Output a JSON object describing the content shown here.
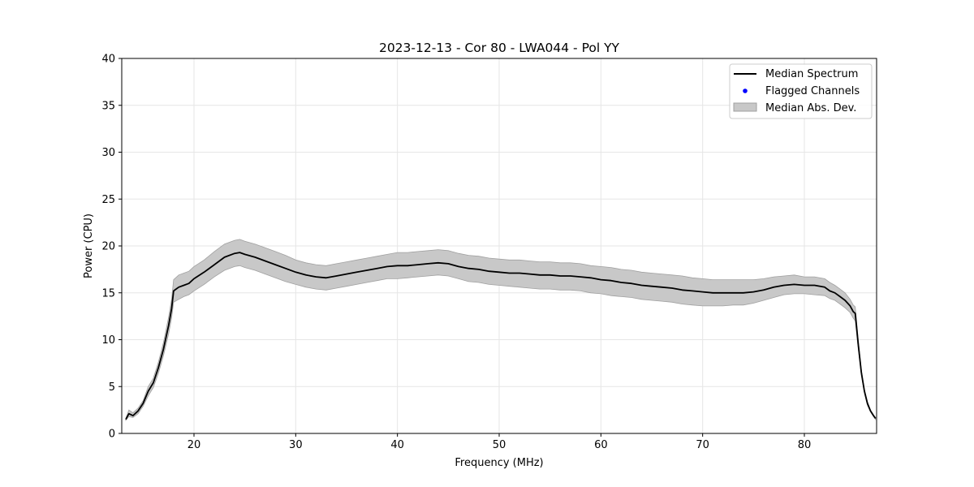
{
  "chart_data": {
    "type": "line",
    "title": "2023-12-13 - Cor 80 - LWA044 - Pol YY",
    "xlabel": "Frequency (MHz)",
    "ylabel": "Power (CPU)",
    "xlim": [
      12.9,
      87.1
    ],
    "ylim": [
      0,
      40
    ],
    "xticks": [
      20,
      30,
      40,
      50,
      60,
      70,
      80
    ],
    "yticks": [
      0,
      5,
      10,
      15,
      20,
      25,
      30,
      35,
      40
    ],
    "grid": true,
    "legend_position": "top-right",
    "legend": [
      "Median Spectrum",
      "Flagged Channels",
      "Median Abs. Dev."
    ],
    "colors": {
      "median": "#000000",
      "flagged": "#0000ff",
      "band_fill": "#c8c8c8",
      "band_edge": "#a0a0a0",
      "grid": "#e6e6e6"
    },
    "series": [
      {
        "name": "Median Spectrum",
        "x": [
          13.3,
          13.6,
          14.0,
          14.5,
          15.0,
          15.5,
          16.0,
          16.5,
          17.0,
          17.5,
          17.8,
          18.0,
          18.5,
          19.0,
          19.5,
          20.0,
          21.0,
          22.0,
          23.0,
          24.0,
          24.5,
          25.0,
          26.0,
          27.0,
          28.0,
          29.0,
          30.0,
          31.0,
          32.0,
          33.0,
          34.0,
          35.0,
          36.0,
          37.0,
          38.0,
          39.0,
          40.0,
          41.0,
          42.0,
          43.0,
          44.0,
          45.0,
          46.0,
          47.0,
          48.0,
          49.0,
          50.0,
          51.0,
          52.0,
          53.0,
          54.0,
          55.0,
          56.0,
          57.0,
          58.0,
          59.0,
          60.0,
          61.0,
          62.0,
          63.0,
          64.0,
          65.0,
          66.0,
          67.0,
          68.0,
          69.0,
          70.0,
          71.0,
          72.0,
          73.0,
          74.0,
          75.0,
          76.0,
          77.0,
          78.0,
          79.0,
          80.0,
          81.0,
          82.0,
          82.5,
          83.0,
          83.5,
          84.0,
          84.5,
          84.8,
          85.0,
          85.3,
          85.6,
          85.9,
          86.2,
          86.5,
          86.8,
          87.0
        ],
        "values": [
          1.5,
          2.1,
          1.9,
          2.4,
          3.2,
          4.5,
          5.4,
          7.0,
          9.0,
          11.5,
          13.3,
          15.2,
          15.6,
          15.8,
          16.0,
          16.5,
          17.2,
          18.0,
          18.8,
          19.2,
          19.3,
          19.1,
          18.8,
          18.4,
          18.0,
          17.6,
          17.2,
          16.9,
          16.7,
          16.6,
          16.8,
          17.0,
          17.2,
          17.4,
          17.6,
          17.8,
          17.9,
          17.9,
          18.0,
          18.1,
          18.2,
          18.1,
          17.8,
          17.6,
          17.5,
          17.3,
          17.2,
          17.1,
          17.1,
          17.0,
          16.9,
          16.9,
          16.8,
          16.8,
          16.7,
          16.6,
          16.4,
          16.3,
          16.1,
          16.0,
          15.8,
          15.7,
          15.6,
          15.5,
          15.3,
          15.2,
          15.1,
          15.0,
          15.0,
          15.0,
          15.0,
          15.1,
          15.3,
          15.6,
          15.8,
          15.9,
          15.8,
          15.8,
          15.6,
          15.2,
          15.0,
          14.6,
          14.2,
          13.6,
          13.0,
          12.8,
          9.5,
          6.5,
          4.5,
          3.2,
          2.4,
          1.9,
          1.6
        ]
      },
      {
        "name": "Median Abs. Dev.",
        "x": [
          13.3,
          13.6,
          14.0,
          14.5,
          15.0,
          15.5,
          16.0,
          16.5,
          17.0,
          17.5,
          17.8,
          18.0,
          18.5,
          19.0,
          19.5,
          20.0,
          21.0,
          22.0,
          23.0,
          24.0,
          24.5,
          25.0,
          26.0,
          27.0,
          28.0,
          29.0,
          30.0,
          31.0,
          32.0,
          33.0,
          34.0,
          35.0,
          36.0,
          37.0,
          38.0,
          39.0,
          40.0,
          41.0,
          42.0,
          43.0,
          44.0,
          45.0,
          46.0,
          47.0,
          48.0,
          49.0,
          50.0,
          51.0,
          52.0,
          53.0,
          54.0,
          55.0,
          56.0,
          57.0,
          58.0,
          59.0,
          60.0,
          61.0,
          62.0,
          63.0,
          64.0,
          65.0,
          66.0,
          67.0,
          68.0,
          69.0,
          70.0,
          71.0,
          72.0,
          73.0,
          74.0,
          75.0,
          76.0,
          77.0,
          78.0,
          79.0,
          80.0,
          81.0,
          82.0,
          82.5,
          83.0,
          83.5,
          84.0,
          84.5,
          84.8,
          85.0,
          85.3,
          85.6,
          85.9,
          86.2,
          86.5,
          86.8,
          87.0
        ],
        "lower": [
          1.4,
          1.8,
          1.7,
          2.1,
          2.9,
          4.0,
          4.9,
          6.4,
          8.3,
          10.6,
          12.3,
          14.0,
          14.3,
          14.6,
          14.8,
          15.2,
          15.9,
          16.7,
          17.4,
          17.8,
          17.9,
          17.7,
          17.4,
          17.0,
          16.6,
          16.2,
          15.9,
          15.6,
          15.4,
          15.3,
          15.5,
          15.7,
          15.9,
          16.1,
          16.3,
          16.5,
          16.5,
          16.6,
          16.7,
          16.8,
          16.9,
          16.8,
          16.5,
          16.2,
          16.1,
          15.9,
          15.8,
          15.7,
          15.6,
          15.5,
          15.4,
          15.4,
          15.3,
          15.3,
          15.2,
          15.0,
          14.9,
          14.7,
          14.6,
          14.5,
          14.3,
          14.2,
          14.1,
          14.0,
          13.8,
          13.7,
          13.6,
          13.6,
          13.6,
          13.7,
          13.7,
          13.9,
          14.2,
          14.5,
          14.8,
          14.9,
          14.9,
          14.8,
          14.7,
          14.4,
          14.2,
          13.8,
          13.4,
          12.9,
          12.3,
          12.0,
          9.0,
          6.2,
          4.3,
          3.0,
          2.3,
          1.8,
          1.5
        ],
        "upper": [
          1.6,
          2.5,
          2.2,
          2.7,
          3.5,
          5.0,
          5.9,
          7.6,
          9.7,
          12.4,
          14.3,
          16.4,
          16.9,
          17.1,
          17.3,
          17.8,
          18.5,
          19.4,
          20.2,
          20.6,
          20.7,
          20.5,
          20.2,
          19.8,
          19.4,
          19.0,
          18.5,
          18.2,
          18.0,
          17.9,
          18.1,
          18.3,
          18.5,
          18.7,
          18.9,
          19.1,
          19.3,
          19.3,
          19.4,
          19.5,
          19.6,
          19.5,
          19.2,
          19.0,
          18.9,
          18.7,
          18.6,
          18.5,
          18.5,
          18.4,
          18.3,
          18.3,
          18.2,
          18.2,
          18.1,
          17.9,
          17.8,
          17.7,
          17.5,
          17.4,
          17.2,
          17.1,
          17.0,
          16.9,
          16.8,
          16.6,
          16.5,
          16.4,
          16.4,
          16.4,
          16.4,
          16.4,
          16.5,
          16.7,
          16.8,
          16.9,
          16.7,
          16.7,
          16.5,
          16.1,
          15.8,
          15.4,
          15.0,
          14.3,
          13.7,
          13.5,
          10.0,
          6.8,
          4.7,
          3.4,
          2.5,
          2.0,
          1.7
        ]
      }
    ]
  }
}
